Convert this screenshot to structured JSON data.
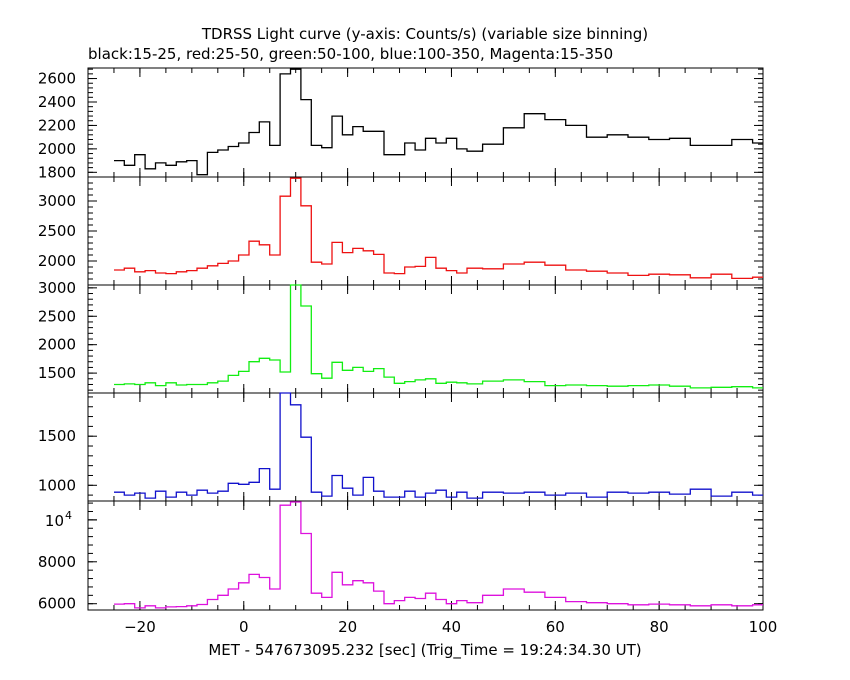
{
  "chart_data": {
    "type": "line",
    "title": "TDRSS Light curve (y-axis: Counts/s) (variable size binning)",
    "subtitle": "black:15-25, red:25-50, green:50-100, blue:100-350, Magenta:15-350",
    "xlabel": "MET - 547673095.232 [sec] (Trig_Time = 19:24:34.30 UT)",
    "xlim": [
      -30,
      100
    ],
    "xticks": [
      -20,
      0,
      20,
      40,
      60,
      80,
      100
    ],
    "xtick_labels": [
      "−20",
      "0",
      "20",
      "40",
      "60",
      "80",
      "100"
    ],
    "grid": false,
    "panels": [
      {
        "name": "15-25",
        "color": "#000000",
        "ylim": [
          1760,
          2690
        ],
        "yticks": [
          1800,
          2000,
          2200,
          2400,
          2600
        ],
        "ytick_labels": [
          "1800",
          "2000",
          "2200",
          "2400",
          "2600"
        ],
        "x": [
          -24,
          -22,
          -20,
          -18,
          -16,
          -14,
          -12,
          -10,
          -8,
          -6,
          -4,
          -2,
          0,
          2,
          4,
          6,
          8,
          10,
          12,
          14,
          16,
          18,
          20,
          22,
          24,
          26,
          28,
          30,
          32,
          34,
          36,
          38,
          40,
          42,
          44,
          48,
          52,
          56,
          60,
          64,
          68,
          72,
          76,
          80,
          84,
          88,
          92,
          96,
          100
        ],
        "y": [
          1900,
          1860,
          1950,
          1830,
          1880,
          1860,
          1890,
          1900,
          1780,
          1970,
          1990,
          2020,
          2050,
          2140,
          2230,
          2030,
          2640,
          2680,
          2420,
          2030,
          2010,
          2280,
          2120,
          2190,
          2150,
          2150,
          1950,
          1950,
          2050,
          1990,
          2090,
          2050,
          2090,
          2000,
          1980,
          2040,
          2180,
          2300,
          2250,
          2200,
          2100,
          2120,
          2100,
          2080,
          2090,
          2030,
          2030,
          2080,
          2050
        ]
      },
      {
        "name": "25-50",
        "color": "#ee1111",
        "ylim": [
          1600,
          3400
        ],
        "yticks": [
          2000,
          2500,
          3000
        ],
        "ytick_labels": [
          "2000",
          "2500",
          "3000"
        ],
        "x": [
          -24,
          -22,
          -20,
          -18,
          -16,
          -14,
          -12,
          -10,
          -8,
          -6,
          -4,
          -2,
          0,
          2,
          4,
          6,
          8,
          10,
          12,
          14,
          16,
          18,
          20,
          22,
          24,
          26,
          28,
          30,
          32,
          34,
          36,
          38,
          40,
          42,
          44,
          48,
          52,
          56,
          60,
          64,
          68,
          72,
          76,
          80,
          84,
          88,
          92,
          96,
          100
        ],
        "y": [
          1850,
          1880,
          1820,
          1840,
          1800,
          1790,
          1820,
          1840,
          1880,
          1920,
          1960,
          2000,
          2100,
          2330,
          2270,
          2100,
          3080,
          3380,
          2920,
          1980,
          1950,
          2310,
          2140,
          2210,
          2170,
          2110,
          1800,
          1790,
          1900,
          1910,
          2060,
          1880,
          1840,
          1800,
          1880,
          1870,
          1950,
          1980,
          1930,
          1850,
          1830,
          1800,
          1760,
          1780,
          1770,
          1720,
          1780,
          1710,
          1730
        ]
      },
      {
        "name": "50-100",
        "color": "#11ee11",
        "ylim": [
          1150,
          3050
        ],
        "yticks": [
          1500,
          2000,
          2500,
          3000
        ],
        "ytick_labels": [
          "1500",
          "2000",
          "2500",
          "3000"
        ],
        "x": [
          -24,
          -22,
          -20,
          -18,
          -16,
          -14,
          -12,
          -10,
          -8,
          -6,
          -4,
          -2,
          0,
          2,
          4,
          6,
          8,
          10,
          12,
          14,
          16,
          18,
          20,
          22,
          24,
          26,
          28,
          30,
          32,
          34,
          36,
          38,
          40,
          42,
          44,
          48,
          52,
          56,
          60,
          64,
          68,
          72,
          76,
          80,
          84,
          88,
          92,
          96,
          100
        ],
        "y": [
          1300,
          1310,
          1300,
          1330,
          1280,
          1330,
          1290,
          1300,
          1300,
          1330,
          1360,
          1460,
          1530,
          1700,
          1760,
          1730,
          1520,
          3050,
          2680,
          1490,
          1410,
          1690,
          1550,
          1600,
          1530,
          1580,
          1430,
          1320,
          1350,
          1380,
          1400,
          1320,
          1340,
          1330,
          1310,
          1360,
          1380,
          1350,
          1280,
          1290,
          1280,
          1270,
          1280,
          1290,
          1270,
          1240,
          1250,
          1260,
          1240
        ]
      },
      {
        "name": "100-350",
        "color": "#1111cc",
        "ylim": [
          840,
          1940
        ],
        "yticks": [
          1000,
          1500
        ],
        "ytick_labels": [
          "1000",
          "1500"
        ],
        "x": [
          -24,
          -22,
          -20,
          -18,
          -16,
          -14,
          -12,
          -10,
          -8,
          -6,
          -4,
          -2,
          0,
          2,
          4,
          6,
          8,
          10,
          12,
          14,
          16,
          18,
          20,
          22,
          24,
          26,
          28,
          30,
          32,
          34,
          36,
          38,
          40,
          42,
          44,
          48,
          52,
          56,
          60,
          64,
          68,
          72,
          76,
          80,
          84,
          88,
          92,
          96,
          100
        ],
        "y": [
          930,
          900,
          920,
          870,
          940,
          880,
          930,
          900,
          950,
          920,
          940,
          1020,
          1010,
          1030,
          1170,
          960,
          1940,
          1820,
          1490,
          930,
          890,
          1100,
          970,
          900,
          1080,
          940,
          880,
          880,
          940,
          880,
          920,
          950,
          880,
          930,
          870,
          930,
          920,
          930,
          900,
          920,
          880,
          930,
          920,
          930,
          910,
          960,
          890,
          930,
          900
        ]
      },
      {
        "name": "15-350",
        "color": "#dd11dd",
        "ylim": [
          5700,
          10900
        ],
        "yticks": [
          6000,
          8000,
          10000
        ],
        "ytick_labels": [
          "6000",
          "8000",
          ""
        ],
        "ytick_special": {
          "base": "10",
          "exp": "4"
        },
        "x": [
          -24,
          -22,
          -20,
          -18,
          -16,
          -14,
          -12,
          -10,
          -8,
          -6,
          -4,
          -2,
          0,
          2,
          4,
          6,
          8,
          10,
          12,
          14,
          16,
          18,
          20,
          22,
          24,
          26,
          28,
          30,
          32,
          34,
          36,
          38,
          40,
          42,
          44,
          48,
          52,
          56,
          60,
          64,
          68,
          72,
          76,
          80,
          84,
          88,
          92,
          96,
          100
        ],
        "y": [
          5980,
          6000,
          5800,
          5900,
          5800,
          5850,
          5860,
          5900,
          5960,
          6200,
          6400,
          6700,
          7000,
          7400,
          7250,
          6700,
          10700,
          10850,
          9350,
          6500,
          6300,
          7500,
          6900,
          7100,
          7000,
          6600,
          6000,
          6150,
          6300,
          6250,
          6500,
          6200,
          6000,
          6150,
          6050,
          6400,
          6700,
          6550,
          6300,
          6100,
          6050,
          6000,
          5950,
          5980,
          5950,
          5900,
          5950,
          5900,
          5950
        ]
      }
    ]
  }
}
